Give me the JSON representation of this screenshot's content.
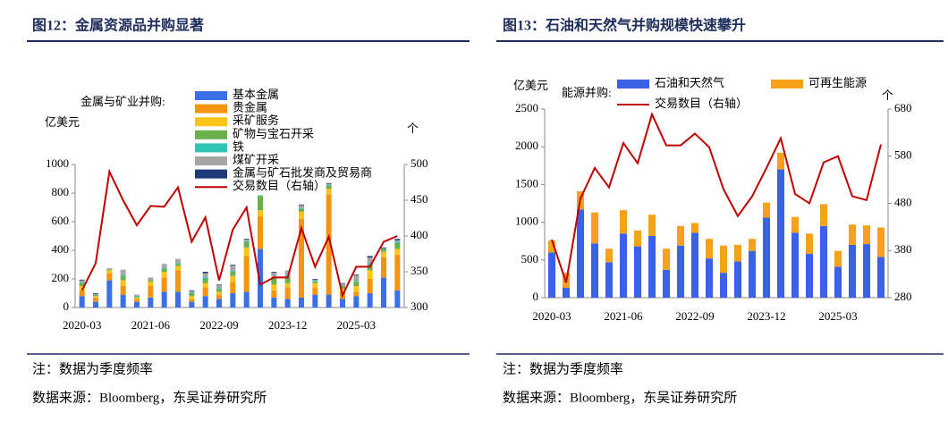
{
  "chart_data": [
    {
      "type": "bar",
      "title": "图12：金属资源品并购显著",
      "y_label": "亿美元",
      "y2_label": "个",
      "legend_title": "金属与矿业并购:",
      "note": "注：数据为季度频率",
      "source": "数据来源：Bloomberg，东吴证券研究所",
      "categories": [
        "2020-03",
        null,
        null,
        null,
        null,
        "2021-06",
        null,
        null,
        null,
        null,
        "2022-09",
        null,
        null,
        null,
        null,
        "2023-12",
        null,
        null,
        null,
        null,
        "2025-03",
        null,
        null,
        null
      ],
      "ylim": [
        0,
        1000
      ],
      "yticks": [
        0,
        200,
        400,
        600,
        800,
        1000
      ],
      "y2lim": [
        300,
        500
      ],
      "y2ticks": [
        300,
        350,
        400,
        450,
        500
      ],
      "series": [
        {
          "name": "基本金属",
          "color": "#3a6fe8",
          "values": [
            80,
            40,
            190,
            90,
            40,
            70,
            110,
            110,
            40,
            80,
            60,
            100,
            110,
            410,
            70,
            60,
            70,
            90,
            90,
            60,
            80,
            100,
            210,
            120
          ]
        },
        {
          "name": "贵金属",
          "color": "#f5950f",
          "values": [
            40,
            30,
            50,
            60,
            20,
            80,
            100,
            150,
            20,
            60,
            30,
            80,
            250,
            230,
            50,
            80,
            550,
            50,
            700,
            50,
            30,
            100,
            140,
            250
          ]
        },
        {
          "name": "采矿服务",
          "color": "#fcc419",
          "values": [
            30,
            10,
            20,
            40,
            10,
            30,
            40,
            30,
            20,
            30,
            20,
            40,
            60,
            40,
            40,
            30,
            50,
            30,
            40,
            20,
            40,
            60,
            40,
            40
          ]
        },
        {
          "name": "矿物与宝石开采",
          "color": "#6ab04c",
          "values": [
            20,
            10,
            5,
            30,
            5,
            10,
            20,
            15,
            20,
            30,
            20,
            30,
            40,
            100,
            40,
            40,
            20,
            10,
            20,
            20,
            30,
            40,
            20,
            40
          ]
        },
        {
          "name": "铁",
          "color": "#2ec4b6",
          "values": [
            5,
            0,
            0,
            5,
            5,
            0,
            5,
            5,
            5,
            10,
            5,
            5,
            5,
            5,
            5,
            10,
            5,
            5,
            5,
            5,
            5,
            10,
            5,
            10
          ]
        },
        {
          "name": "煤矿开采",
          "color": "#a6a6a6",
          "values": [
            15,
            5,
            10,
            40,
            10,
            20,
            30,
            30,
            10,
            30,
            20,
            40,
            10,
            0,
            40,
            40,
            20,
            10,
            10,
            10,
            40,
            40,
            0,
            10
          ]
        },
        {
          "name": "金属与矿石批发商及贸易商",
          "color": "#1f3a78",
          "values": [
            5,
            5,
            0,
            0,
            0,
            0,
            0,
            0,
            5,
            10,
            5,
            5,
            5,
            0,
            5,
            0,
            5,
            5,
            5,
            5,
            5,
            10,
            5,
            10
          ]
        },
        {
          "name": "交易数目（右轴）",
          "color": "#c00000",
          "type": "line",
          "axis": "y2",
          "values": [
            324,
            362,
            490,
            450,
            415,
            442,
            441,
            468,
            392,
            426,
            338,
            409,
            440,
            332,
            342,
            342,
            411,
            357,
            399,
            317,
            357,
            357,
            392,
            400
          ]
        }
      ]
    },
    {
      "type": "bar",
      "title": "图13：石油和天然气并购规模快速攀升",
      "y_label": "亿美元",
      "y2_label": "个",
      "legend_title": "能源并购:",
      "note": "注：数据为季度频率",
      "source": "数据来源：Bloomberg，东吴证券研究所",
      "categories": [
        "2020-03",
        null,
        null,
        null,
        null,
        "2021-06",
        null,
        null,
        null,
        null,
        "2022-09",
        null,
        null,
        null,
        null,
        "2023-12",
        null,
        null,
        null,
        null,
        "2025-03",
        null,
        null,
        null
      ],
      "ylim": [
        0,
        2500
      ],
      "yticks": [
        0,
        500,
        1000,
        1500,
        2000,
        2500
      ],
      "y2lim": [
        280,
        680
      ],
      "y2ticks": [
        280,
        380,
        480,
        580,
        680
      ],
      "series": [
        {
          "name": "石油和天然气",
          "color": "#3a62e6",
          "values": [
            600,
            130,
            1170,
            720,
            470,
            850,
            680,
            820,
            370,
            690,
            860,
            520,
            330,
            480,
            620,
            1060,
            1700,
            860,
            580,
            950,
            410,
            700,
            710,
            540
          ]
        },
        {
          "name": "可再生能源",
          "color": "#f7a01c",
          "values": [
            160,
            200,
            240,
            410,
            180,
            310,
            210,
            280,
            280,
            260,
            130,
            260,
            360,
            220,
            160,
            200,
            220,
            210,
            270,
            290,
            210,
            270,
            250,
            390
          ]
        },
        {
          "name": "交易数目（右轴）",
          "color": "#c00000",
          "type": "line",
          "axis": "y2",
          "values": [
            403,
            312,
            490,
            555,
            514,
            608,
            565,
            669,
            603,
            603,
            628,
            599,
            510,
            453,
            495,
            555,
            618,
            500,
            480,
            567,
            580,
            495,
            487,
            605
          ]
        }
      ]
    }
  ]
}
